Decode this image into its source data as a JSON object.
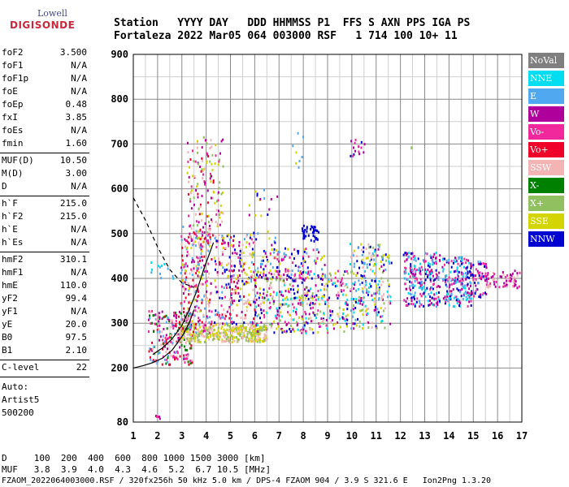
{
  "logo": {
    "line1": "Lowell",
    "line2": "DIGISONDE"
  },
  "header": {
    "line1": "Station   YYYY DAY   DDD HHMMSS P1  FFS S AXN PPS IGA PS",
    "line2": "Fortaleza 2022 Mar05 064 003000 RSF   1 714 100 10+ 11"
  },
  "params": {
    "group1": [
      {
        "name": "foF2",
        "value": "3.500"
      },
      {
        "name": "foF1",
        "value": "N/A"
      },
      {
        "name": "foF1p",
        "value": "N/A"
      },
      {
        "name": "foE",
        "value": "N/A"
      },
      {
        "name": "foEp",
        "value": "0.48"
      },
      {
        "name": "fxI",
        "value": "3.85"
      },
      {
        "name": "foEs",
        "value": "N/A"
      },
      {
        "name": "fmin",
        "value": "1.60"
      }
    ],
    "group2": [
      {
        "name": "MUF(D)",
        "value": "10.50"
      },
      {
        "name": "M(D)",
        "value": "3.00"
      },
      {
        "name": "D",
        "value": "N/A"
      }
    ],
    "group3": [
      {
        "name": "h`F",
        "value": "215.0"
      },
      {
        "name": "h`F2",
        "value": "215.0"
      },
      {
        "name": "h`E",
        "value": "N/A"
      },
      {
        "name": "h`Es",
        "value": "N/A"
      }
    ],
    "group4": [
      {
        "name": "hmF2",
        "value": "310.1"
      },
      {
        "name": "hmF1",
        "value": "N/A"
      },
      {
        "name": "hmE",
        "value": "110.0"
      },
      {
        "name": "yF2",
        "value": "99.4"
      },
      {
        "name": "yF1",
        "value": "N/A"
      },
      {
        "name": "yE",
        "value": "20.0"
      },
      {
        "name": "B0",
        "value": "97.5"
      },
      {
        "name": "B1",
        "value": "2.10"
      }
    ],
    "group5": [
      {
        "name": "C-level",
        "value": "22"
      }
    ],
    "auto": [
      "Auto:",
      "Artist5",
      "500200"
    ]
  },
  "legend": [
    {
      "label": "NoVal",
      "color": "#7f7f7f"
    },
    {
      "label": "NNE",
      "color": "#00dcf0"
    },
    {
      "label": "E",
      "color": "#50a8f0"
    },
    {
      "label": "W",
      "color": "#b0009c"
    },
    {
      "label": "Vo-",
      "color": "#f0289c"
    },
    {
      "label": "Vo+",
      "color": "#f00028"
    },
    {
      "label": "SSW",
      "color": "#f4b4b4"
    },
    {
      "label": "X-",
      "color": "#008000"
    },
    {
      "label": "X+",
      "color": "#90c060"
    },
    {
      "label": "SSE",
      "color": "#d4d400"
    },
    {
      "label": "NNW",
      "color": "#0000d0"
    }
  ],
  "muf_table": {
    "row1": "D     100  200  400  600  800 1000 1500 3000 [km]",
    "row2": "MUF   3.8  3.9  4.0  4.3  4.6  5.2  6.7 10.5 [MHz]"
  },
  "footer": "FZAOM_2022064003000.RSF / 320fx256h 50 kHz 5.0 km / DPS-4 FZAOM 904 / 3.9 S 321.6 E   Ion2Png 1.3.20",
  "chart_data": {
    "type": "scatter",
    "xlim": [
      1,
      17
    ],
    "ylim": [
      80,
      900
    ],
    "x_ticks": [
      1,
      2,
      3,
      4,
      5,
      6,
      7,
      8,
      9,
      10,
      11,
      12,
      13,
      14,
      15,
      16,
      17
    ],
    "y_ticks": [
      80,
      200,
      300,
      400,
      500,
      600,
      700,
      800,
      900
    ],
    "grid": true,
    "legend_position": "right",
    "clusters": [
      {
        "x": [
          1.9,
          2.1
        ],
        "y": [
          88,
          97
        ],
        "n": 6,
        "colors": [
          "#b0009c",
          "#f0289c"
        ]
      },
      {
        "x": [
          1.6,
          3.4
        ],
        "y": [
          210,
          330
        ],
        "n": 240,
        "colors": [
          "#f00028",
          "#f0289c",
          "#f4b4b4",
          "#50a8f0",
          "#008000",
          "#b0009c"
        ]
      },
      {
        "x": [
          1.7,
          2.7
        ],
        "y": [
          400,
          440
        ],
        "n": 12,
        "colors": [
          "#50a8f0",
          "#00dcf0"
        ]
      },
      {
        "x": [
          2.9,
          6.5
        ],
        "y": [
          260,
          300
        ],
        "n": 380,
        "colors": [
          "#d4d400",
          "#f4b4b4",
          "#90c060"
        ]
      },
      {
        "x": [
          2.9,
          4.2
        ],
        "y": [
          280,
          520
        ],
        "n": 260,
        "colors": [
          "#f0289c",
          "#b0009c",
          "#f00028",
          "#d4d400",
          "#50a8f0",
          "#f4b4b4"
        ]
      },
      {
        "x": [
          3.2,
          4.7
        ],
        "y": [
          480,
          720
        ],
        "n": 160,
        "colors": [
          "#d4d400",
          "#f0289c",
          "#b0009c",
          "#f00028",
          "#90c060",
          "#f4b4b4"
        ]
      },
      {
        "x": [
          4.3,
          6.1
        ],
        "y": [
          300,
          500
        ],
        "n": 260,
        "colors": [
          "#b0009c",
          "#f0289c",
          "#0000d0",
          "#50a8f0",
          "#d4d400",
          "#f00028",
          "#f4b4b4"
        ]
      },
      {
        "x": [
          5.7,
          6.9
        ],
        "y": [
          450,
          600
        ],
        "n": 30,
        "colors": [
          "#b0009c",
          "#0000d0",
          "#d4d400",
          "#50a8f0"
        ]
      },
      {
        "x": [
          6.0,
          9.8
        ],
        "y": [
          280,
          420
        ],
        "n": 420,
        "colors": [
          "#d4d400",
          "#f4b4b4",
          "#00dcf0",
          "#b0009c",
          "#f0289c",
          "#0000d0",
          "#90c060"
        ]
      },
      {
        "x": [
          6.2,
          8.9
        ],
        "y": [
          400,
          470
        ],
        "n": 110,
        "colors": [
          "#b0009c",
          "#0000d0",
          "#50a8f0",
          "#d4d400",
          "#f0289c"
        ]
      },
      {
        "x": [
          7.9,
          8.6
        ],
        "y": [
          485,
          520
        ],
        "n": 40,
        "colors": [
          "#0000d0"
        ]
      },
      {
        "x": [
          7.5,
          8.2
        ],
        "y": [
          640,
          740
        ],
        "n": 8,
        "colors": [
          "#00dcf0",
          "#d4d400",
          "#50a8f0"
        ]
      },
      {
        "x": [
          9.9,
          10.5
        ],
        "y": [
          670,
          715
        ],
        "n": 16,
        "colors": [
          "#b0009c",
          "#0000d0",
          "#f0289c"
        ]
      },
      {
        "x": [
          9.9,
          11.6
        ],
        "y": [
          290,
          480
        ],
        "n": 230,
        "colors": [
          "#d4d400",
          "#f4b4b4",
          "#b0009c",
          "#00dcf0",
          "#0000d0",
          "#50a8f0",
          "#90c060"
        ]
      },
      {
        "x": [
          12.1,
          13.6
        ],
        "y": [
          340,
          460
        ],
        "n": 230,
        "colors": [
          "#b0009c",
          "#0000d0",
          "#f0289c",
          "#00dcf0",
          "#50a8f0"
        ]
      },
      {
        "x": [
          13.7,
          14.9
        ],
        "y": [
          340,
          450
        ],
        "n": 180,
        "colors": [
          "#b0009c",
          "#0000d0",
          "#f0289c",
          "#50a8f0",
          "#00dcf0"
        ]
      },
      {
        "x": [
          14.8,
          15.6
        ],
        "y": [
          360,
          440
        ],
        "n": 70,
        "colors": [
          "#b0009c",
          "#f0289c",
          "#50a8f0",
          "#0000d0"
        ]
      },
      {
        "x": [
          15.5,
          17.0
        ],
        "y": [
          380,
          420
        ],
        "n": 60,
        "colors": [
          "#b0009c",
          "#f0289c",
          "#f4b4b4"
        ]
      },
      {
        "x": [
          12.3,
          12.5
        ],
        "y": [
          680,
          700
        ],
        "n": 2,
        "colors": [
          "#90c060"
        ]
      }
    ],
    "model_profile": {
      "x": [
        1.0,
        1.4,
        1.8,
        2.2,
        2.6,
        3.0,
        3.3,
        3.5
      ],
      "y": [
        200,
        205,
        212,
        222,
        240,
        270,
        300,
        330
      ]
    },
    "trace_curve": {
      "x": [
        1.8,
        2.2,
        2.6,
        3.0,
        3.3,
        3.6,
        3.9,
        4.3
      ],
      "y": [
        230,
        245,
        265,
        295,
        330,
        370,
        420,
        480
      ]
    },
    "dashed_profile": {
      "x": [
        1.0,
        1.5,
        2.0,
        2.5,
        3.0,
        3.5
      ],
      "y": [
        580,
        530,
        470,
        420,
        390,
        380
      ]
    }
  }
}
